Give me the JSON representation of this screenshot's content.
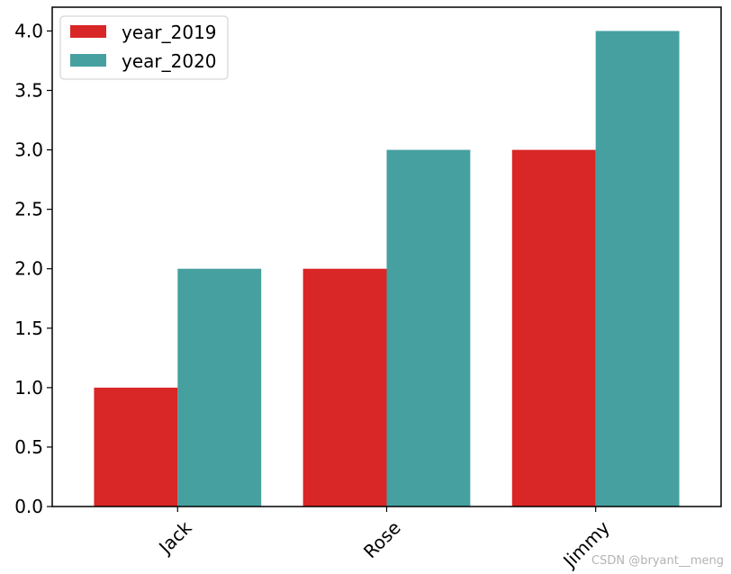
{
  "chart_data": {
    "type": "bar",
    "categories": [
      "Jack",
      "Rose",
      "Jimmy"
    ],
    "series": [
      {
        "name": "year_2019",
        "values": [
          1,
          2,
          3
        ],
        "color": "#d92626"
      },
      {
        "name": "year_2020",
        "values": [
          2,
          3,
          4
        ],
        "color": "#46a0a0"
      }
    ],
    "ylim": [
      0,
      4.2
    ],
    "yticks": [
      "0.0",
      "0.5",
      "1.0",
      "1.5",
      "2.0",
      "2.5",
      "3.0",
      "3.5",
      "4.0"
    ],
    "xtick_rotation_deg": 45,
    "legend_position": "top-left",
    "grid": false
  },
  "watermark": "CSDN @bryant__meng"
}
